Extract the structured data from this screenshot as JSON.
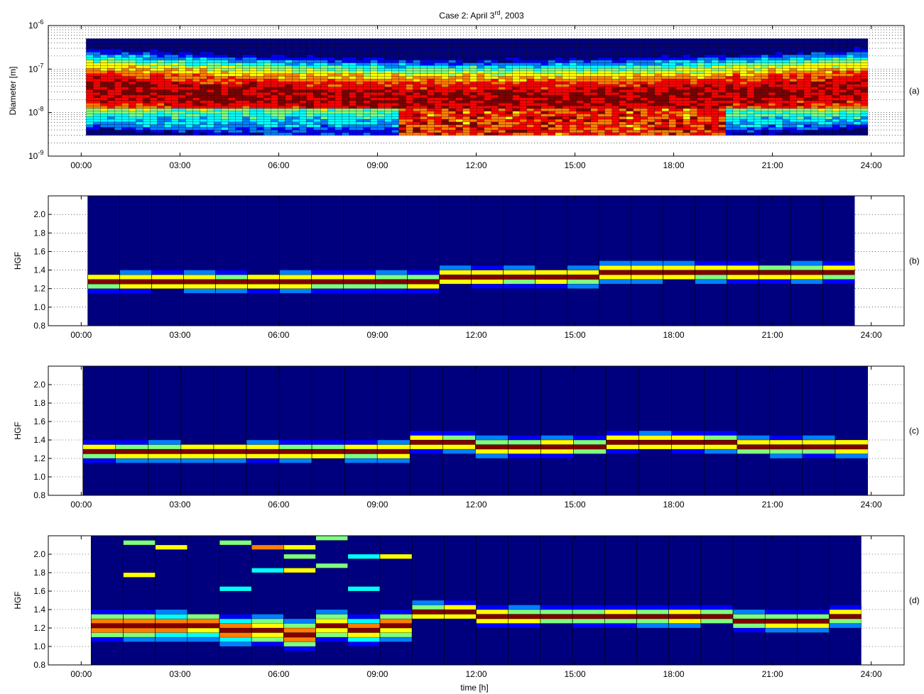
{
  "figure": {
    "title": "Case 2: April 3rd, 2003",
    "title_main": "Case 2: April 3",
    "title_sup": "rd",
    "title_tail": ", 2003",
    "xlabel": "time [h]",
    "xticks": [
      "00:00",
      "03:00",
      "06:00",
      "09:00",
      "12:00",
      "15:00",
      "18:00",
      "21:00",
      "24:00"
    ],
    "colormap": [
      "#00007f",
      "#0000ff",
      "#007fff",
      "#00ffff",
      "#7fff7f",
      "#ffff00",
      "#ff7f00",
      "#ff0000",
      "#7f0000"
    ]
  },
  "chart_data": [
    {
      "type": "heatmap",
      "panel": "(a)",
      "ylabel": "Diameter [m]",
      "yscale": "log",
      "ylim": [
        1e-09,
        1e-06
      ],
      "yticks": [
        "10^-9",
        "10^-8",
        "10^-7",
        "10^-6"
      ],
      "xlim_h": [
        -1,
        25
      ],
      "grid": true,
      "data_span_h": [
        0.15,
        23.9
      ],
      "data_diameter_range_m": [
        3e-09,
        5e-07
      ],
      "description_levels": "dense mode 2e-8 to 1e-7 m all day; strong growth below 1.5e-8 m from 09:30 to 19:00"
    },
    {
      "type": "heatmap",
      "panel": "(b)",
      "ylabel": "HGF",
      "ylim": [
        0.8,
        2.2
      ],
      "yticks": [
        "0.8",
        "1.0",
        "1.2",
        "1.4",
        "1.6",
        "1.8",
        "2.0"
      ],
      "xlim_h": [
        -1,
        25
      ],
      "data_span_h": [
        0.2,
        23.5
      ],
      "mode_hgf": [
        1.25,
        1.25,
        1.25,
        1.25,
        1.25,
        1.25,
        1.25,
        1.25,
        1.25,
        1.25,
        1.25,
        1.3,
        1.3,
        1.3,
        1.3,
        1.3,
        1.35,
        1.35,
        1.35,
        1.35,
        1.35,
        1.35,
        1.35,
        1.35
      ]
    },
    {
      "type": "heatmap",
      "panel": "(c)",
      "ylabel": "HGF",
      "ylim": [
        0.8,
        2.2
      ],
      "yticks": [
        "0.8",
        "1.0",
        "1.2",
        "1.4",
        "1.6",
        "1.8",
        "2.0"
      ],
      "xlim_h": [
        -1,
        25
      ],
      "data_span_h": [
        0.05,
        23.9
      ],
      "mode_hgf": [
        1.25,
        1.25,
        1.25,
        1.25,
        1.25,
        1.25,
        1.25,
        1.25,
        1.25,
        1.25,
        1.35,
        1.35,
        1.3,
        1.3,
        1.3,
        1.3,
        1.35,
        1.35,
        1.35,
        1.35,
        1.3,
        1.3,
        1.3,
        1.3
      ]
    },
    {
      "type": "heatmap",
      "panel": "(d)",
      "ylabel": "HGF",
      "ylim": [
        0.8,
        2.2
      ],
      "yticks": [
        "0.8",
        "1.0",
        "1.2",
        "1.4",
        "1.6",
        "1.8",
        "2.0"
      ],
      "xlim_h": [
        -1,
        25
      ],
      "data_span_h": [
        0.3,
        23.7
      ],
      "mode_hgf": [
        1.2,
        1.2,
        1.2,
        1.2,
        1.15,
        1.15,
        1.1,
        1.2,
        1.15,
        1.2,
        1.35,
        1.35,
        1.3,
        1.3,
        1.3,
        1.3,
        1.3,
        1.3,
        1.3,
        1.3,
        1.25,
        1.25,
        1.25,
        1.3
      ]
    }
  ]
}
